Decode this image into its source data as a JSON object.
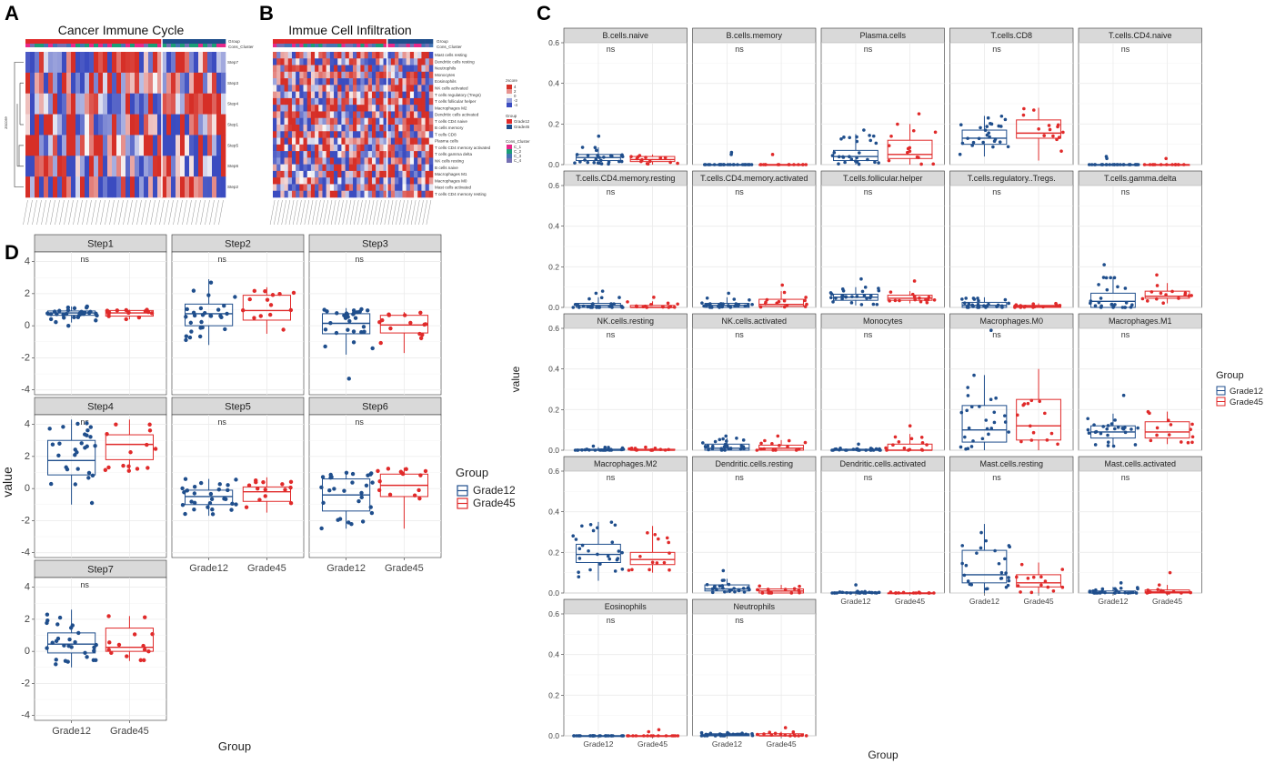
{
  "figure": {
    "panel_a": "A",
    "panel_b": "B",
    "panel_c": "C",
    "panel_d": "D"
  },
  "heatmap_a": {
    "title": "Cancer Immune Cycle",
    "legend_rows": [
      "Group",
      "Cons_Cluster"
    ],
    "side_label": "zscore",
    "rows": [
      "Step7",
      "Step3",
      "Step4",
      "Step1",
      "Step5",
      "Step6",
      "Step2"
    ]
  },
  "heatmap_b": {
    "title": "Immue Cell Infiltration",
    "legend_rows": [
      "Group",
      "Cons_Cluster"
    ],
    "rows": [
      "Mast cells resting",
      "Dendritic cells resting",
      "Neutrophils",
      "Monocytes",
      "Eosinophils",
      "NK cells activated",
      "T cells regulatory (Tregs)",
      "T cells follicular helper",
      "Macrophages M2",
      "Dendritic cells activated",
      "T cells CD4 naive",
      "B cells memory",
      "T cells CD8",
      "Plasma cells",
      "T cells CD4 memory activated",
      "T cells gamma delta",
      "NK cells resting",
      "B cells naive",
      "Macrophages M1",
      "Macrophages M0",
      "Mast cells activated",
      "T cells CD4 memory resting"
    ],
    "legend": {
      "zscore_title": "zscore",
      "zscore_ticks": [
        "4",
        "2",
        "0",
        "-2",
        "-4"
      ],
      "group_title": "Group",
      "group_items": [
        "Grade12",
        "Grade45"
      ],
      "cluster_title": "Cons_Cluster",
      "cluster_items": [
        "C_1",
        "C_2",
        "C_3",
        "C_4"
      ]
    }
  },
  "colors": {
    "grade12": "#1f4e8c",
    "grade45": "#e02a2a",
    "strip_bg": "#d9d9d9",
    "grid": "#ebebeb",
    "heat_high": "#d62f27",
    "heat_low": "#3b4cc0",
    "cluster": [
      "#e7298a",
      "#1b9e77",
      "#4575b4",
      "#7570b3"
    ]
  },
  "chart_data": [
    {
      "type": "boxplot",
      "panel": "C",
      "xlabel": "Group",
      "ylabel": "value",
      "categories": [
        "Grade12",
        "Grade45"
      ],
      "ylim": [
        0,
        0.6
      ],
      "yticks": [
        0,
        0.2,
        0.4,
        0.6
      ],
      "yticks_text": [
        "0.0",
        "0.2",
        "0.4",
        "0.6"
      ],
      "legend": {
        "title": "Group",
        "items": [
          "Grade12",
          "Grade45"
        ]
      },
      "facets": [
        {
          "title": "B.cells.naive",
          "sig": "ns",
          "series": [
            {
              "name": "Grade12",
              "min": 0.0,
              "q1": 0.02,
              "median": 0.035,
              "q3": 0.05,
              "max": 0.085,
              "outliers": [
                0.14
              ]
            },
            {
              "name": "Grade45",
              "min": 0.0,
              "q1": 0.015,
              "median": 0.025,
              "q3": 0.04,
              "max": 0.05
            }
          ]
        },
        {
          "title": "B.cells.memory",
          "sig": "ns",
          "series": [
            {
              "name": "Grade12",
              "min": 0.0,
              "q1": 0.0,
              "median": 0.0,
              "q3": 0.0,
              "max": 0.0,
              "outliers": [
                0.05,
                0.06
              ]
            },
            {
              "name": "Grade45",
              "min": 0.0,
              "q1": 0.0,
              "median": 0.0,
              "q3": 0.0,
              "max": 0.0,
              "outliers": [
                0.05
              ]
            }
          ]
        },
        {
          "title": "Plasma.cells",
          "sig": "ns",
          "series": [
            {
              "name": "Grade12",
              "min": 0.0,
              "q1": 0.02,
              "median": 0.04,
              "q3": 0.07,
              "max": 0.15,
              "outliers": [
                0.17
              ]
            },
            {
              "name": "Grade45",
              "min": 0.0,
              "q1": 0.03,
              "median": 0.05,
              "q3": 0.12,
              "max": 0.2,
              "outliers": [
                0.25
              ]
            }
          ]
        },
        {
          "title": "T.cells.CD8",
          "sig": "ns",
          "series": [
            {
              "name": "Grade12",
              "min": 0.04,
              "q1": 0.1,
              "median": 0.13,
              "q3": 0.17,
              "max": 0.24
            },
            {
              "name": "Grade45",
              "min": 0.02,
              "q1": 0.13,
              "median": 0.155,
              "q3": 0.22,
              "max": 0.28
            }
          ]
        },
        {
          "title": "T.cells.CD4.naive",
          "sig": "ns",
          "series": [
            {
              "name": "Grade12",
              "min": 0.0,
              "q1": 0.0,
              "median": 0.0,
              "q3": 0.0,
              "max": 0.0,
              "outliers": [
                0.03,
                0.04
              ]
            },
            {
              "name": "Grade45",
              "min": 0.0,
              "q1": 0.0,
              "median": 0.0,
              "q3": 0.0,
              "max": 0.0,
              "outliers": [
                0.03
              ]
            }
          ]
        },
        {
          "title": "T.cells.CD4.memory.resting",
          "sig": "ns",
          "series": [
            {
              "name": "Grade12",
              "min": 0.0,
              "q1": 0.0,
              "median": 0.01,
              "q3": 0.02,
              "max": 0.05,
              "outliers": [
                0.07,
                0.08
              ]
            },
            {
              "name": "Grade45",
              "min": 0.0,
              "q1": 0.0,
              "median": 0.0,
              "q3": 0.01,
              "max": 0.03,
              "outliers": [
                0.05
              ]
            }
          ]
        },
        {
          "title": "T.cells.CD4.memory.activated",
          "sig": "ns",
          "series": [
            {
              "name": "Grade12",
              "min": 0.0,
              "q1": 0.0,
              "median": 0.01,
              "q3": 0.02,
              "max": 0.05,
              "outliers": [
                0.07
              ]
            },
            {
              "name": "Grade45",
              "min": 0.0,
              "q1": 0.005,
              "median": 0.015,
              "q3": 0.04,
              "max": 0.08,
              "outliers": [
                0.11
              ]
            }
          ]
        },
        {
          "title": "T.cells.follicular.helper",
          "sig": "ns",
          "series": [
            {
              "name": "Grade12",
              "min": 0.01,
              "q1": 0.035,
              "median": 0.05,
              "q3": 0.065,
              "max": 0.1,
              "outliers": [
                0.14
              ]
            },
            {
              "name": "Grade45",
              "min": 0.02,
              "q1": 0.035,
              "median": 0.045,
              "q3": 0.06,
              "max": 0.08,
              "outliers": [
                0.13
              ]
            }
          ]
        },
        {
          "title": "T.cells.regulatory..Tregs.",
          "sig": "ns",
          "series": [
            {
              "name": "Grade12",
              "min": 0.0,
              "q1": 0.0,
              "median": 0.01,
              "q3": 0.025,
              "max": 0.05
            },
            {
              "name": "Grade45",
              "min": 0.0,
              "q1": 0.0,
              "median": 0.005,
              "q3": 0.01,
              "max": 0.02
            }
          ]
        },
        {
          "title": "T.cells.gamma.delta",
          "sig": "ns",
          "series": [
            {
              "name": "Grade12",
              "min": 0.0,
              "q1": 0.0,
              "median": 0.03,
              "q3": 0.07,
              "max": 0.15,
              "outliers": [
                0.21
              ]
            },
            {
              "name": "Grade45",
              "min": 0.02,
              "q1": 0.045,
              "median": 0.055,
              "q3": 0.08,
              "max": 0.12,
              "outliers": [
                0.16
              ]
            }
          ]
        },
        {
          "title": "NK.cells.resting",
          "sig": "ns",
          "series": [
            {
              "name": "Grade12",
              "min": 0.0,
              "q1": 0.0,
              "median": 0.0,
              "q3": 0.005,
              "max": 0.015,
              "outliers": [
                0.02
              ]
            },
            {
              "name": "Grade45",
              "min": 0.0,
              "q1": 0.0,
              "median": 0.0,
              "q3": 0.005,
              "max": 0.01,
              "outliers": [
                0.015
              ]
            }
          ]
        },
        {
          "title": "NK.cells.activated",
          "sig": "ns",
          "series": [
            {
              "name": "Grade12",
              "min": 0.0,
              "q1": 0.0,
              "median": 0.01,
              "q3": 0.03,
              "max": 0.06,
              "outliers": [
                0.07
              ]
            },
            {
              "name": "Grade45",
              "min": 0.0,
              "q1": 0.0,
              "median": 0.01,
              "q3": 0.025,
              "max": 0.05,
              "outliers": [
                0.07
              ]
            }
          ]
        },
        {
          "title": "Monocytes",
          "sig": "ns",
          "series": [
            {
              "name": "Grade12",
              "min": 0.0,
              "q1": 0.0,
              "median": 0.0,
              "q3": 0.005,
              "max": 0.01,
              "outliers": [
                0.03
              ]
            },
            {
              "name": "Grade45",
              "min": 0.0,
              "q1": 0.0,
              "median": 0.0,
              "q3": 0.03,
              "max": 0.08,
              "outliers": [
                0.12
              ]
            }
          ]
        },
        {
          "title": "Macrophages.M0",
          "sig": "ns",
          "series": [
            {
              "name": "Grade12",
              "min": 0.0,
              "q1": 0.04,
              "median": 0.1,
              "q3": 0.22,
              "max": 0.37,
              "outliers": [
                0.59
              ]
            },
            {
              "name": "Grade45",
              "min": 0.0,
              "q1": 0.05,
              "median": 0.12,
              "q3": 0.25,
              "max": 0.4
            }
          ]
        },
        {
          "title": "Macrophages.M1",
          "sig": "ns",
          "series": [
            {
              "name": "Grade12",
              "min": 0.02,
              "q1": 0.06,
              "median": 0.09,
              "q3": 0.12,
              "max": 0.18,
              "outliers": [
                0.27
              ]
            },
            {
              "name": "Grade45",
              "min": 0.03,
              "q1": 0.06,
              "median": 0.09,
              "q3": 0.14,
              "max": 0.19
            }
          ]
        },
        {
          "title": "Macrophages.M2",
          "sig": "ns",
          "series": [
            {
              "name": "Grade12",
              "min": 0.06,
              "q1": 0.15,
              "median": 0.19,
              "q3": 0.24,
              "max": 0.35
            },
            {
              "name": "Grade45",
              "min": 0.1,
              "q1": 0.14,
              "median": 0.165,
              "q3": 0.2,
              "max": 0.33
            }
          ]
        },
        {
          "title": "Dendritic.cells.resting",
          "sig": "ns",
          "series": [
            {
              "name": "Grade12",
              "min": 0.0,
              "q1": 0.01,
              "median": 0.02,
              "q3": 0.04,
              "max": 0.07,
              "outliers": [
                0.11
              ]
            },
            {
              "name": "Grade45",
              "min": 0.0,
              "q1": 0.0,
              "median": 0.01,
              "q3": 0.02,
              "max": 0.04
            }
          ]
        },
        {
          "title": "Dendritic.cells.activated",
          "sig": "ns",
          "series": [
            {
              "name": "Grade12",
              "min": 0.0,
              "q1": 0.0,
              "median": 0.0,
              "q3": 0.005,
              "max": 0.01,
              "outliers": [
                0.04
              ]
            },
            {
              "name": "Grade45",
              "min": 0.0,
              "q1": 0.0,
              "median": 0.0,
              "q3": 0.0,
              "max": 0.005
            }
          ]
        },
        {
          "title": "Mast.cells.resting",
          "sig": "ns",
          "series": [
            {
              "name": "Grade12",
              "min": 0.0,
              "q1": 0.05,
              "median": 0.09,
              "q3": 0.21,
              "max": 0.34
            },
            {
              "name": "Grade45",
              "min": 0.0,
              "q1": 0.03,
              "median": 0.05,
              "q3": 0.09,
              "max": 0.15
            }
          ]
        },
        {
          "title": "Mast.cells.activated",
          "sig": "ns",
          "series": [
            {
              "name": "Grade12",
              "min": 0.0,
              "q1": 0.0,
              "median": 0.0,
              "q3": 0.01,
              "max": 0.03,
              "outliers": [
                0.05
              ]
            },
            {
              "name": "Grade45",
              "min": 0.0,
              "q1": 0.0,
              "median": 0.005,
              "q3": 0.015,
              "max": 0.04,
              "outliers": [
                0.1
              ]
            }
          ]
        },
        {
          "title": "Eosinophils",
          "sig": "ns",
          "series": [
            {
              "name": "Grade12",
              "min": 0.0,
              "q1": 0.0,
              "median": 0.0,
              "q3": 0.0,
              "max": 0.0
            },
            {
              "name": "Grade45",
              "min": 0.0,
              "q1": 0.0,
              "median": 0.0,
              "q3": 0.0,
              "max": 0.0,
              "outliers": [
                0.02,
                0.03
              ]
            }
          ]
        },
        {
          "title": "Neutrophils",
          "sig": "ns",
          "series": [
            {
              "name": "Grade12",
              "min": 0.0,
              "q1": 0.0,
              "median": 0.005,
              "q3": 0.01,
              "max": 0.02
            },
            {
              "name": "Grade45",
              "min": 0.0,
              "q1": 0.0,
              "median": 0.0,
              "q3": 0.01,
              "max": 0.02,
              "outliers": [
                0.04
              ]
            }
          ]
        }
      ]
    },
    {
      "type": "boxplot",
      "panel": "D",
      "xlabel": "Group",
      "ylabel": "value",
      "categories": [
        "Grade12",
        "Grade45"
      ],
      "ylim": [
        -4.3,
        4.6
      ],
      "yticks": [
        -4,
        -2,
        0,
        2,
        4
      ],
      "yticks_text": [
        "-4",
        "-2",
        "0",
        "2",
        "4"
      ],
      "legend": {
        "title": "Group",
        "items": [
          "Grade12",
          "Grade45"
        ]
      },
      "facets": [
        {
          "title": "Step1",
          "sig": "ns",
          "series": [
            {
              "name": "Grade12",
              "min": 0.2,
              "q1": 0.65,
              "median": 0.8,
              "q3": 0.92,
              "max": 1.2,
              "outliers": [
                0.0
              ]
            },
            {
              "name": "Grade45",
              "min": 0.4,
              "q1": 0.6,
              "median": 0.8,
              "q3": 0.95,
              "max": 1.0
            }
          ]
        },
        {
          "title": "Step2",
          "sig": "ns",
          "series": [
            {
              "name": "Grade12",
              "min": -1.2,
              "q1": 0.0,
              "median": 0.75,
              "q3": 1.35,
              "max": 2.9
            },
            {
              "name": "Grade45",
              "min": -0.5,
              "q1": 0.35,
              "median": 0.95,
              "q3": 1.9,
              "max": 2.4
            }
          ]
        },
        {
          "title": "Step3",
          "sig": "ns",
          "series": [
            {
              "name": "Grade12",
              "min": -1.8,
              "q1": -0.5,
              "median": 0.15,
              "q3": 0.75,
              "max": 1.1,
              "outliers": [
                -3.3
              ]
            },
            {
              "name": "Grade45",
              "min": -1.7,
              "q1": -0.45,
              "median": 0.05,
              "q3": 0.65,
              "max": 0.85
            }
          ]
        },
        {
          "title": "Step4",
          "sig": "ns",
          "series": [
            {
              "name": "Grade12",
              "min": -1.0,
              "q1": 0.85,
              "median": 1.75,
              "q3": 3.0,
              "max": 4.3
            },
            {
              "name": "Grade45",
              "min": 1.0,
              "q1": 1.8,
              "median": 2.75,
              "q3": 3.35,
              "max": 4.3
            }
          ]
        },
        {
          "title": "Step5",
          "sig": "ns",
          "series": [
            {
              "name": "Grade12",
              "min": -1.7,
              "q1": -1.0,
              "median": -0.5,
              "q3": -0.1,
              "max": 0.6
            },
            {
              "name": "Grade45",
              "min": -1.5,
              "q1": -0.8,
              "median": -0.2,
              "q3": 0.1,
              "max": 0.7
            }
          ]
        },
        {
          "title": "Step6",
          "sig": "ns",
          "series": [
            {
              "name": "Grade12",
              "min": -2.5,
              "q1": -1.4,
              "median": -0.4,
              "q3": 0.6,
              "max": 1.0
            },
            {
              "name": "Grade45",
              "min": -2.5,
              "q1": -0.5,
              "median": 0.2,
              "q3": 0.9,
              "max": 1.3
            }
          ]
        },
        {
          "title": "Step7",
          "sig": "ns",
          "series": [
            {
              "name": "Grade12",
              "min": -1.0,
              "q1": -0.1,
              "median": 0.45,
              "q3": 1.15,
              "max": 2.6
            },
            {
              "name": "Grade45",
              "min": -0.6,
              "q1": 0.0,
              "median": 0.25,
              "q3": 1.45,
              "max": 2.2
            }
          ]
        }
      ]
    }
  ]
}
